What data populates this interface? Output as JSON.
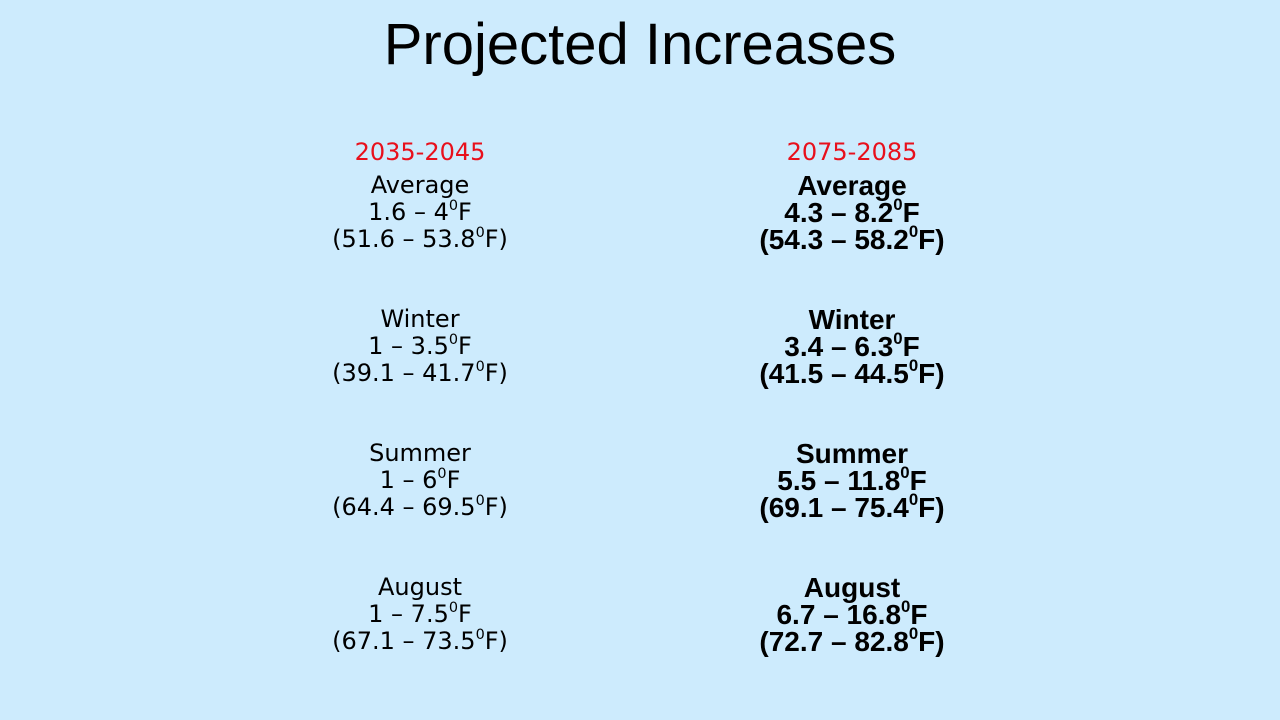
{
  "title": "Projected Increases",
  "degree_mark": "0",
  "columns": [
    {
      "period": "2035-2045",
      "blocks": [
        {
          "label": "Average",
          "increase": "1.6 – 4",
          "increase_unit": "F",
          "range_open": "(51.6 – 53.8",
          "range_unit": "F)"
        },
        {
          "label": "Winter",
          "increase": "1 – 3.5",
          "increase_unit": "F",
          "range_open": "(39.1 – 41.7",
          "range_unit": "F)"
        },
        {
          "label": "Summer",
          "increase": "1 – 6",
          "increase_unit": "F",
          "range_open": "(64.4 – 69.5",
          "range_unit": "F)"
        },
        {
          "label": "August",
          "increase": "1 – 7.5",
          "increase_unit": "F",
          "range_open": "(67.1 – 73.5",
          "range_unit": "F)"
        }
      ]
    },
    {
      "period": "2075-2085",
      "blocks": [
        {
          "label": "Average",
          "increase": "4.3 – 8.2",
          "increase_unit": "F",
          "range_open": "(54.3 – 58.2",
          "range_unit": "F)"
        },
        {
          "label": "Winter",
          "increase": "3.4 – 6.3",
          "increase_unit": "F",
          "range_open": "(41.5 – 44.5",
          "range_unit": "F)"
        },
        {
          "label": "Summer",
          "increase": "5.5 – 11.8",
          "increase_unit": "F",
          "range_open": "(69.1 – 75.4",
          "range_unit": "F)"
        },
        {
          "label": "August",
          "increase": "6.7 – 16.8",
          "increase_unit": "F",
          "range_open": "(72.7 – 82.8",
          "range_unit": "F)"
        }
      ]
    }
  ]
}
